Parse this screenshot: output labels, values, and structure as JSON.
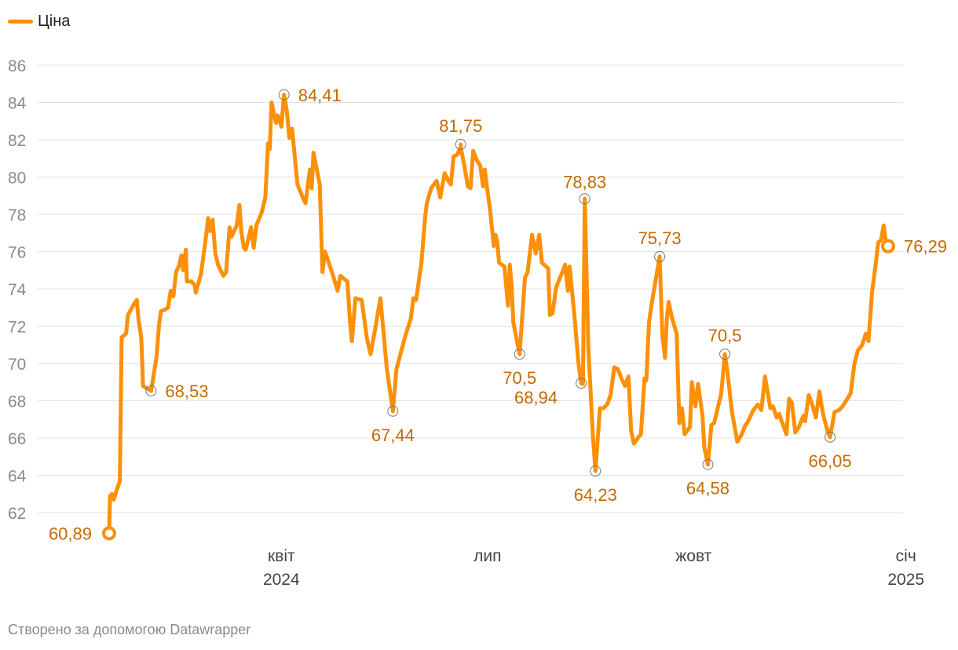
{
  "legend": {
    "label": "Ціна",
    "color": "#fd9009"
  },
  "footer": "Створено за допомогою Datawrapper",
  "colors": {
    "line": "#fd9009",
    "annotation": "#c36a00",
    "grid": "#e2e2e2",
    "tick": "#8b8b8b"
  },
  "chart_data": {
    "type": "line",
    "title": "",
    "series": [
      {
        "name": "Ціна"
      }
    ],
    "ylim": [
      61,
      86
    ],
    "yticks": [
      62,
      64,
      66,
      68,
      70,
      72,
      74,
      76,
      78,
      80,
      82,
      84,
      86
    ],
    "xlim": [
      0,
      100
    ],
    "xticks": [
      {
        "x": 19.3,
        "label": "квіт",
        "sublabel": "2024"
      },
      {
        "x": 42.4,
        "label": "лип",
        "sublabel": ""
      },
      {
        "x": 65.5,
        "label": "жовт",
        "sublabel": ""
      },
      {
        "x": 89.3,
        "label": "січ",
        "sublabel": "2025"
      }
    ],
    "points": [
      [
        0,
        60.89
      ],
      [
        0.1,
        62.9
      ],
      [
        0.3,
        63
      ],
      [
        0.5,
        62.7
      ],
      [
        1.2,
        63.7
      ],
      [
        1.4,
        71.4
      ],
      [
        1.9,
        71.6
      ],
      [
        2.1,
        72.6
      ],
      [
        2.8,
        73.2
      ],
      [
        3.1,
        73.4
      ],
      [
        3.3,
        72.3
      ],
      [
        3.6,
        71.4
      ],
      [
        3.8,
        68.8
      ],
      [
        4.1,
        68.7
      ],
      [
        4.7,
        68.53
      ],
      [
        5.3,
        70.3
      ],
      [
        5.6,
        72.1
      ],
      [
        5.8,
        72.8
      ],
      [
        6.3,
        72.9
      ],
      [
        6.6,
        73
      ],
      [
        6.9,
        73.9
      ],
      [
        7.2,
        73.6
      ],
      [
        7.5,
        74.9
      ],
      [
        7.8,
        75.2
      ],
      [
        8.1,
        75.8
      ],
      [
        8.3,
        75
      ],
      [
        8.6,
        76.1
      ],
      [
        8.7,
        74.4
      ],
      [
        9.2,
        74.4
      ],
      [
        9.6,
        74.2
      ],
      [
        9.7,
        73.8
      ],
      [
        10.3,
        74.8
      ],
      [
        10.8,
        76.6
      ],
      [
        11.1,
        77.8
      ],
      [
        11.3,
        77.1
      ],
      [
        11.6,
        77.7
      ],
      [
        11.9,
        75.9
      ],
      [
        12.2,
        75.3
      ],
      [
        12.8,
        74.7
      ],
      [
        13.1,
        74.9
      ],
      [
        13.5,
        77.3
      ],
      [
        13.7,
        76.8
      ],
      [
        14.3,
        77.4
      ],
      [
        14.6,
        78.5
      ],
      [
        14.8,
        77.1
      ],
      [
        15.1,
        76.2
      ],
      [
        15.3,
        76.1
      ],
      [
        15.9,
        77.3
      ],
      [
        16.2,
        76.2
      ],
      [
        16.5,
        77.4
      ],
      [
        17.1,
        78.1
      ],
      [
        17.5,
        78.9
      ],
      [
        17.8,
        81.8
      ],
      [
        18,
        81.5
      ],
      [
        18.2,
        84
      ],
      [
        18.7,
        82.9
      ],
      [
        18.9,
        83.3
      ],
      [
        19.3,
        82.7
      ],
      [
        19.6,
        84.41
      ],
      [
        19.9,
        83.6
      ],
      [
        20.2,
        82.1
      ],
      [
        20.5,
        82.6
      ],
      [
        20.8,
        81.1
      ],
      [
        21.1,
        79.6
      ],
      [
        21.7,
        78.9
      ],
      [
        22,
        78.6
      ],
      [
        22.5,
        80.4
      ],
      [
        22.7,
        79.4
      ],
      [
        22.9,
        81.3
      ],
      [
        23.6,
        79.6
      ],
      [
        23.9,
        74.9
      ],
      [
        24.2,
        76
      ],
      [
        25.1,
        74.7
      ],
      [
        25.6,
        73.9
      ],
      [
        25.9,
        74.7
      ],
      [
        26.7,
        74.4
      ],
      [
        27,
        72.2
      ],
      [
        27.2,
        71.2
      ],
      [
        27.6,
        73.5
      ],
      [
        28.3,
        73.4
      ],
      [
        28.9,
        71.3
      ],
      [
        29.3,
        70.5
      ],
      [
        29.8,
        71.8
      ],
      [
        30.4,
        73.5
      ],
      [
        30.8,
        71.4
      ],
      [
        31.1,
        69.8
      ],
      [
        31.8,
        67.44
      ],
      [
        32.2,
        69.7
      ],
      [
        33.2,
        71.5
      ],
      [
        33.8,
        72.4
      ],
      [
        34.1,
        73.5
      ],
      [
        34.4,
        73.4
      ],
      [
        35,
        75.4
      ],
      [
        35.4,
        77.8
      ],
      [
        35.6,
        78.6
      ],
      [
        36.1,
        79.4
      ],
      [
        36.7,
        79.8
      ],
      [
        37.1,
        78.9
      ],
      [
        37.6,
        80.2
      ],
      [
        38,
        79.8
      ],
      [
        38.3,
        79.6
      ],
      [
        38.6,
        81.1
      ],
      [
        39,
        81.2
      ],
      [
        39.4,
        81.6
      ],
      [
        39.8,
        80.6
      ],
      [
        40.2,
        79.5
      ],
      [
        40.5,
        79.4
      ],
      [
        40.8,
        81.4
      ],
      [
        41.2,
        80.9
      ],
      [
        41.6,
        80.6
      ],
      [
        41.9,
        79.5
      ],
      [
        42.1,
        80.4
      ],
      [
        42.3,
        79.6
      ],
      [
        42.7,
        78.2
      ],
      [
        43.1,
        76.3
      ],
      [
        43.3,
        76.9
      ],
      [
        43.5,
        76.5
      ],
      [
        43.7,
        75.4
      ],
      [
        44.3,
        75.2
      ],
      [
        44.7,
        73.1
      ],
      [
        44.9,
        75.3
      ],
      [
        45.1,
        74.2
      ],
      [
        45.3,
        72.2
      ],
      [
        46,
        70.5
      ],
      [
        46.6,
        74.6
      ],
      [
        46.9,
        74.9
      ],
      [
        47.4,
        76.9
      ],
      [
        47.8,
        75.9
      ],
      [
        48.2,
        76.9
      ],
      [
        48.5,
        75.4
      ],
      [
        49.2,
        75.1
      ],
      [
        49.4,
        72.6
      ],
      [
        49.7,
        72.7
      ],
      [
        50.1,
        74.1
      ],
      [
        50.8,
        74.9
      ],
      [
        51.1,
        75.3
      ],
      [
        51.4,
        73.9
      ],
      [
        51.6,
        75.2
      ],
      [
        52.1,
        72.8
      ],
      [
        52.6,
        70
      ],
      [
        52.9,
        68.94
      ],
      [
        53.1,
        68.9
      ],
      [
        53.3,
        78.83
      ],
      [
        53.7,
        70.9
      ],
      [
        54.2,
        66.2
      ],
      [
        54.5,
        64.23
      ],
      [
        55,
        67.6
      ],
      [
        55.4,
        67.6
      ],
      [
        55.8,
        67.8
      ],
      [
        56.2,
        68.3
      ],
      [
        56.6,
        69.8
      ],
      [
        57,
        69.7
      ],
      [
        57.5,
        69.1
      ],
      [
        57.8,
        68.8
      ],
      [
        58.2,
        69.3
      ],
      [
        58.5,
        66.4
      ],
      [
        58.8,
        65.7
      ],
      [
        59.4,
        66.1
      ],
      [
        59.6,
        66.2
      ],
      [
        60,
        69.2
      ],
      [
        60.2,
        69.1
      ],
      [
        60.5,
        72.2
      ],
      [
        60.8,
        73.2
      ],
      [
        61.4,
        74.9
      ],
      [
        61.7,
        75.73
      ],
      [
        62,
        71.5
      ],
      [
        62.3,
        70.3
      ],
      [
        62.5,
        72.4
      ],
      [
        62.7,
        73.3
      ],
      [
        63.1,
        72.4
      ],
      [
        63.6,
        71.6
      ],
      [
        63.9,
        66.8
      ],
      [
        64.2,
        67.6
      ],
      [
        64.5,
        66.2
      ],
      [
        65.1,
        66.6
      ],
      [
        65.3,
        69
      ],
      [
        65.7,
        67.7
      ],
      [
        66,
        68.9
      ],
      [
        66.5,
        67.2
      ],
      [
        66.7,
        65.5
      ],
      [
        67.1,
        64.58
      ],
      [
        67.5,
        66.7
      ],
      [
        67.8,
        66.8
      ],
      [
        68.6,
        68.4
      ],
      [
        69,
        70.5
      ],
      [
        69.3,
        69.5
      ],
      [
        69.8,
        67.4
      ],
      [
        70.4,
        65.8
      ],
      [
        70.9,
        66.2
      ],
      [
        71.3,
        66.7
      ],
      [
        71.5,
        66.8
      ],
      [
        72.2,
        67.5
      ],
      [
        72.7,
        67.8
      ],
      [
        73.1,
        67.5
      ],
      [
        73.5,
        69.3
      ],
      [
        74.1,
        67.6
      ],
      [
        74.4,
        67.7
      ],
      [
        74.8,
        67.1
      ],
      [
        75.1,
        67.3
      ],
      [
        75.3,
        67
      ],
      [
        75.9,
        66.2
      ],
      [
        76.2,
        68.1
      ],
      [
        76.5,
        67.9
      ],
      [
        76.9,
        66.3
      ],
      [
        77.3,
        66.6
      ],
      [
        77.8,
        67.2
      ],
      [
        78,
        66.9
      ],
      [
        78.4,
        68.3
      ],
      [
        78.8,
        67.8
      ],
      [
        79.2,
        67.1
      ],
      [
        79.6,
        68.5
      ],
      [
        80,
        67.3
      ],
      [
        80.5,
        66.4
      ],
      [
        80.8,
        66.05
      ],
      [
        81.3,
        67.4
      ],
      [
        81.8,
        67.5
      ],
      [
        82.2,
        67.7
      ],
      [
        82.6,
        68
      ],
      [
        83.1,
        68.4
      ],
      [
        83.5,
        69.9
      ],
      [
        83.9,
        70.7
      ],
      [
        84.4,
        71
      ],
      [
        84.8,
        71.6
      ],
      [
        85.1,
        71.2
      ],
      [
        85.5,
        73.8
      ],
      [
        85.9,
        75.3
      ],
      [
        86.2,
        76.5
      ],
      [
        86.5,
        76.6
      ],
      [
        86.8,
        77.4
      ],
      [
        87.1,
        76.4
      ],
      [
        87.3,
        76.29
      ]
    ],
    "annotations": [
      {
        "x": 0,
        "y": 60.89,
        "label": "60,89",
        "kind": "end"
      },
      {
        "x": 4.7,
        "y": 68.53,
        "label": "68,53",
        "kind": "min"
      },
      {
        "x": 19.6,
        "y": 84.41,
        "label": "84,41",
        "kind": "max"
      },
      {
        "x": 31.8,
        "y": 67.44,
        "label": "67,44",
        "kind": "min"
      },
      {
        "x": 39.4,
        "y": 81.75,
        "label": "81,75",
        "kind": "max"
      },
      {
        "x": 46,
        "y": 70.5,
        "label": "70,5",
        "kind": "min"
      },
      {
        "x": 52.9,
        "y": 68.94,
        "label": "68,94",
        "kind": "min"
      },
      {
        "x": 53.3,
        "y": 78.83,
        "label": "78,83",
        "kind": "max"
      },
      {
        "x": 54.5,
        "y": 64.23,
        "label": "64,23",
        "kind": "min"
      },
      {
        "x": 61.7,
        "y": 75.73,
        "label": "75,73",
        "kind": "max"
      },
      {
        "x": 67.1,
        "y": 64.58,
        "label": "64,58",
        "kind": "min"
      },
      {
        "x": 69,
        "y": 70.5,
        "label": "70,5",
        "kind": "max"
      },
      {
        "x": 80.8,
        "y": 66.05,
        "label": "66,05",
        "kind": "min"
      },
      {
        "x": 87.3,
        "y": 76.29,
        "label": "76,29",
        "kind": "end"
      }
    ]
  }
}
